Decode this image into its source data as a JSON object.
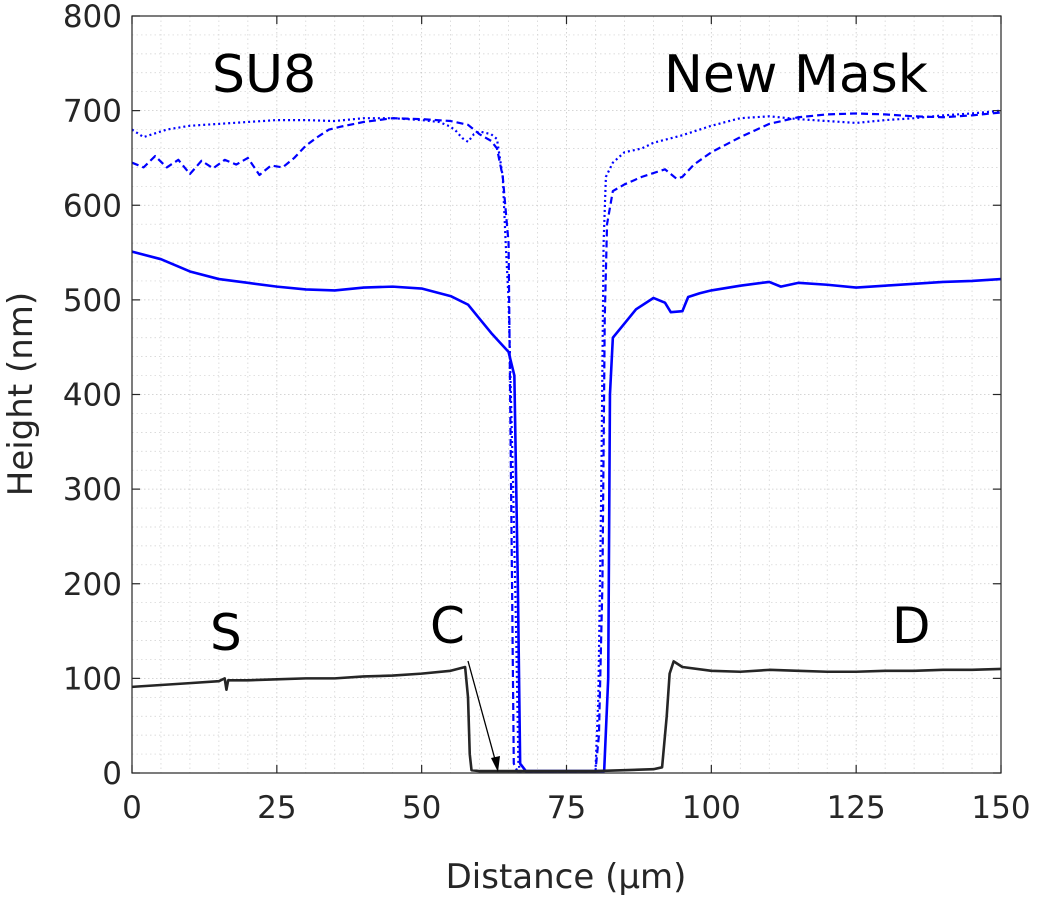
{
  "chart_data": {
    "type": "line",
    "title": "",
    "xlabel": "Distance (μm)",
    "ylabel": "Height (nm)",
    "xlim": [
      0,
      150
    ],
    "ylim": [
      0,
      800
    ],
    "xticks": [
      0,
      25,
      50,
      75,
      100,
      125,
      150
    ],
    "yticks": [
      0,
      100,
      200,
      300,
      400,
      500,
      600,
      700,
      800
    ],
    "grid": "minor dotted",
    "annotations": [
      "SU8",
      "New Mask",
      "S",
      "C",
      "D"
    ],
    "series": [
      {
        "color": "#0000ff",
        "style": "solid",
        "points": [
          [
            0,
            551
          ],
          [
            5,
            543
          ],
          [
            10,
            530
          ],
          [
            15,
            522
          ],
          [
            20,
            518
          ],
          [
            25,
            514
          ],
          [
            30,
            511
          ],
          [
            35,
            510
          ],
          [
            40,
            513
          ],
          [
            45,
            514
          ],
          [
            50,
            512
          ],
          [
            55,
            504
          ],
          [
            58,
            495
          ],
          [
            60,
            480
          ],
          [
            62,
            465
          ],
          [
            63.5,
            455
          ],
          [
            65,
            445
          ],
          [
            66,
            420
          ],
          [
            66.6,
            200
          ],
          [
            67,
            10
          ],
          [
            68,
            2
          ],
          [
            75,
            2
          ],
          [
            81.5,
            2
          ],
          [
            82.2,
            100
          ],
          [
            82.5,
            400
          ],
          [
            83,
            460
          ],
          [
            85,
            475
          ],
          [
            87,
            490
          ],
          [
            90,
            502
          ],
          [
            92,
            497
          ],
          [
            93,
            487
          ],
          [
            95,
            488
          ],
          [
            96,
            503
          ],
          [
            98,
            507
          ],
          [
            100,
            510
          ],
          [
            105,
            515
          ],
          [
            110,
            519
          ],
          [
            112,
            514
          ],
          [
            115,
            518
          ],
          [
            120,
            516
          ],
          [
            125,
            513
          ],
          [
            130,
            515
          ],
          [
            135,
            517
          ],
          [
            140,
            519
          ],
          [
            145,
            520
          ],
          [
            150,
            522
          ]
        ]
      },
      {
        "color": "#0000ff",
        "style": "dashed",
        "points": [
          [
            0,
            645
          ],
          [
            2,
            640
          ],
          [
            4,
            652
          ],
          [
            6,
            640
          ],
          [
            8,
            648
          ],
          [
            10,
            633
          ],
          [
            12,
            647
          ],
          [
            14,
            639
          ],
          [
            16,
            648
          ],
          [
            18,
            643
          ],
          [
            20,
            650
          ],
          [
            22,
            632
          ],
          [
            24,
            642
          ],
          [
            26,
            640
          ],
          [
            28,
            650
          ],
          [
            30,
            663
          ],
          [
            32,
            672
          ],
          [
            34,
            680
          ],
          [
            36,
            683
          ],
          [
            40,
            688
          ],
          [
            45,
            692
          ],
          [
            50,
            691
          ],
          [
            55,
            689
          ],
          [
            58,
            685
          ],
          [
            60,
            675
          ],
          [
            62,
            668
          ],
          [
            63,
            660
          ],
          [
            64,
            630
          ],
          [
            65,
            560
          ],
          [
            65.6,
            200
          ],
          [
            65.9,
            10
          ],
          [
            66.5,
            2
          ],
          [
            75,
            2
          ],
          [
            80,
            2
          ],
          [
            80.6,
            40
          ],
          [
            81.2,
            200
          ],
          [
            81.6,
            480
          ],
          [
            82,
            580
          ],
          [
            83,
            615
          ],
          [
            85,
            622
          ],
          [
            88,
            630
          ],
          [
            92,
            638
          ],
          [
            94,
            628
          ],
          [
            95,
            630
          ],
          [
            97,
            643
          ],
          [
            100,
            656
          ],
          [
            105,
            672
          ],
          [
            110,
            686
          ],
          [
            115,
            693
          ],
          [
            120,
            696
          ],
          [
            125,
            697
          ],
          [
            130,
            696
          ],
          [
            135,
            694
          ],
          [
            140,
            693
          ],
          [
            145,
            695
          ],
          [
            150,
            698
          ]
        ]
      },
      {
        "color": "#0000ff",
        "style": "dotted",
        "points": [
          [
            0,
            680
          ],
          [
            2,
            672
          ],
          [
            4,
            676
          ],
          [
            6,
            680
          ],
          [
            10,
            684
          ],
          [
            15,
            686
          ],
          [
            20,
            688
          ],
          [
            25,
            690
          ],
          [
            30,
            690
          ],
          [
            35,
            689
          ],
          [
            40,
            692
          ],
          [
            45,
            692
          ],
          [
            50,
            690
          ],
          [
            53,
            688
          ],
          [
            55,
            683
          ],
          [
            56,
            678
          ],
          [
            57,
            671
          ],
          [
            58,
            667
          ],
          [
            59,
            675
          ],
          [
            60,
            678
          ],
          [
            62,
            675
          ],
          [
            63,
            670
          ],
          [
            64,
            630
          ],
          [
            64.5,
            560
          ],
          [
            65,
            500
          ],
          [
            65.8,
            300
          ],
          [
            66.3,
            150
          ],
          [
            66.7,
            10
          ],
          [
            67,
            2
          ],
          [
            75,
            2
          ],
          [
            80,
            2
          ],
          [
            80.5,
            80
          ],
          [
            81,
            300
          ],
          [
            81.4,
            560
          ],
          [
            81.8,
            630
          ],
          [
            83,
            645
          ],
          [
            85,
            656
          ],
          [
            88,
            660
          ],
          [
            90,
            666
          ],
          [
            95,
            674
          ],
          [
            100,
            684
          ],
          [
            105,
            692
          ],
          [
            110,
            694
          ],
          [
            115,
            691
          ],
          [
            120,
            689
          ],
          [
            125,
            687
          ],
          [
            130,
            690
          ],
          [
            135,
            692
          ],
          [
            140,
            695
          ],
          [
            145,
            697
          ],
          [
            150,
            700
          ]
        ]
      },
      {
        "color": "#262626",
        "style": "solid",
        "points": [
          [
            0,
            91
          ],
          [
            5,
            93
          ],
          [
            10,
            95
          ],
          [
            15,
            97
          ],
          [
            16,
            100
          ],
          [
            16.3,
            88
          ],
          [
            16.6,
            98
          ],
          [
            20,
            98
          ],
          [
            25,
            99
          ],
          [
            30,
            100
          ],
          [
            35,
            100
          ],
          [
            40,
            102
          ],
          [
            45,
            103
          ],
          [
            50,
            105
          ],
          [
            55,
            108
          ],
          [
            57.5,
            112
          ],
          [
            58,
            80
          ],
          [
            58.3,
            20
          ],
          [
            58.6,
            3
          ],
          [
            60,
            2
          ],
          [
            65,
            2
          ],
          [
            70,
            2
          ],
          [
            75,
            2
          ],
          [
            80,
            2
          ],
          [
            85,
            3
          ],
          [
            90,
            4
          ],
          [
            91.5,
            6
          ],
          [
            92.3,
            60
          ],
          [
            92.8,
            105
          ],
          [
            93.5,
            118
          ],
          [
            94,
            116
          ],
          [
            95,
            112
          ],
          [
            100,
            108
          ],
          [
            105,
            107
          ],
          [
            110,
            109
          ],
          [
            115,
            108
          ],
          [
            120,
            107
          ],
          [
            125,
            107
          ],
          [
            130,
            108
          ],
          [
            135,
            108
          ],
          [
            140,
            109
          ],
          [
            145,
            109
          ],
          [
            150,
            110
          ]
        ]
      }
    ]
  }
}
